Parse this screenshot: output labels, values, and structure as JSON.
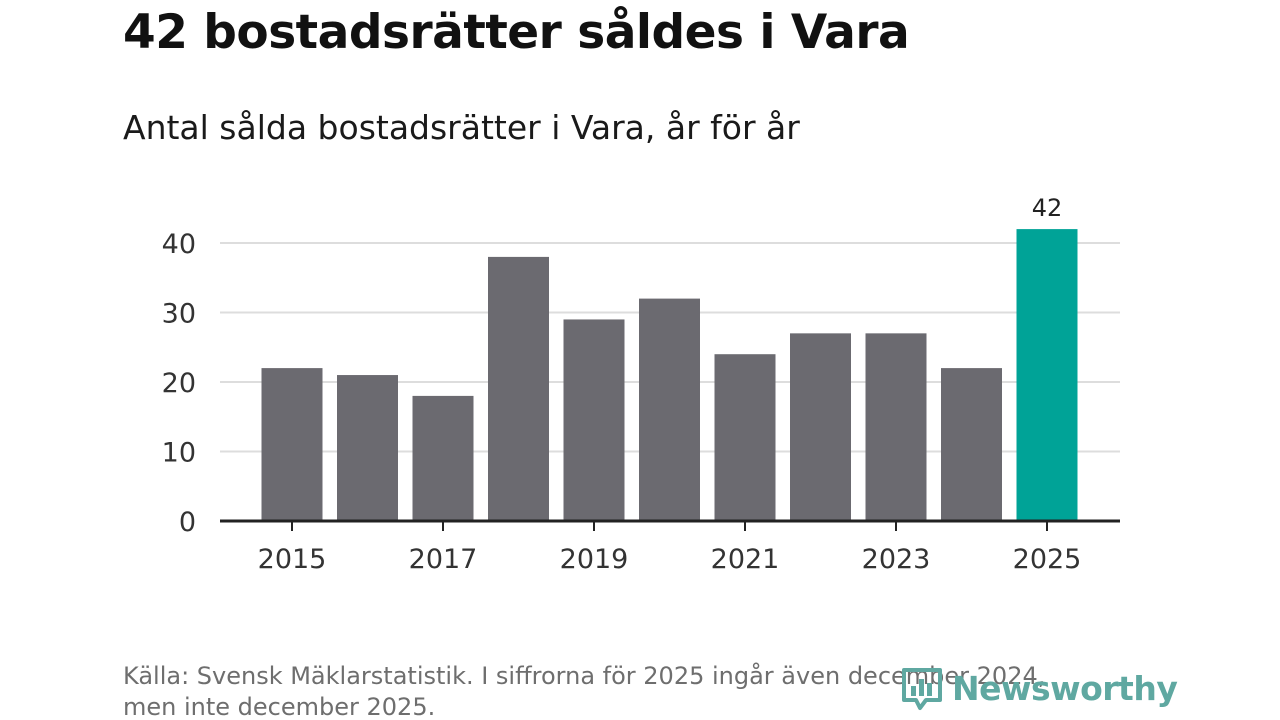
{
  "header": {
    "title": "42 bostadsrätter såldes i Vara",
    "subtitle": "Antal sålda bostadsrätter i Vara, år för år"
  },
  "footer": {
    "source_line1": "Källa: Svensk Mäklarstatistik. I siffrorna för 2025 ingår även december 2024,",
    "source_line2": "men inte december 2025.",
    "logo_text": "Newsworthy",
    "logo_icon": "bar-chart-logo-icon"
  },
  "colors": {
    "bar": "#6b6a70",
    "highlight": "#00a397",
    "grid": "#dddddd",
    "axis": "#222222",
    "logo": "#5fa8a1"
  },
  "chart_data": {
    "type": "bar",
    "title": "Antal sålda bostadsrätter i Vara, år för år",
    "xlabel": "",
    "ylabel": "",
    "categories": [
      "2015",
      "2016",
      "2017",
      "2018",
      "2019",
      "2020",
      "2021",
      "2022",
      "2023",
      "2024",
      "2025"
    ],
    "values": [
      22,
      21,
      18,
      38,
      29,
      32,
      24,
      27,
      27,
      22,
      42
    ],
    "highlight_index": 10,
    "highlight_label": "42",
    "x_tick_labels": [
      "2015",
      "2017",
      "2019",
      "2021",
      "2023",
      "2025"
    ],
    "y_ticks": [
      0,
      10,
      20,
      30,
      40
    ],
    "ylim": [
      0,
      42
    ],
    "grid": true
  }
}
